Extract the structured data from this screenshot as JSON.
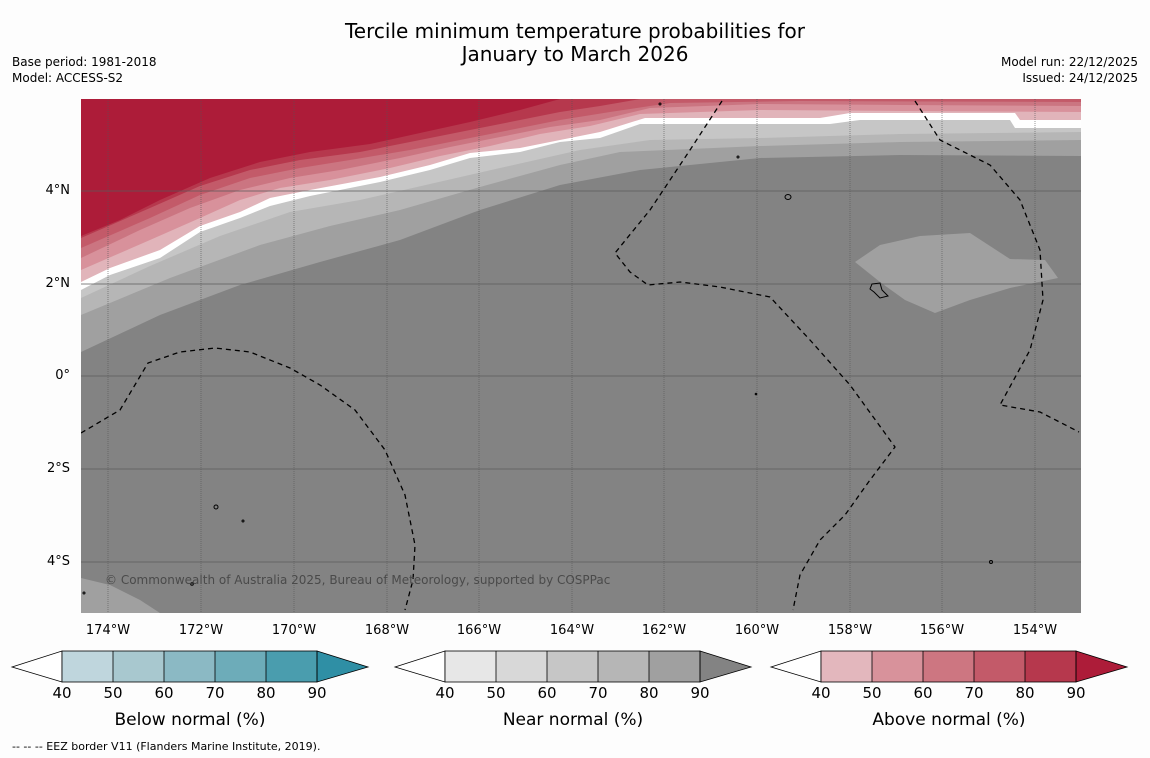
{
  "title": {
    "line1": "Tercile minimum temperature probabilities for",
    "line2": "January to March 2026"
  },
  "meta_left": {
    "base_period": "Base period: 1981-2018",
    "model": "Model: ACCESS-S2"
  },
  "meta_right": {
    "model_run": "Model run: 22/12/2025",
    "issued": "Issued: 24/12/2025"
  },
  "map": {
    "latitude_labels": [
      "4°N",
      "2°N",
      "0°",
      "2°S",
      "4°S"
    ],
    "longitude_labels": [
      "174°W",
      "172°W",
      "170°W",
      "168°W",
      "166°W",
      "164°W",
      "162°W",
      "160°W",
      "158°W",
      "156°W",
      "154°W"
    ],
    "copyright": "© Commonwealth of Australia 2025, Bureau of Meteorology, supported by COSPPac",
    "category_field": "Near normal 90+ over most of domain; Above normal 40-90+ toward north",
    "colors": {
      "near_90": "#838383",
      "near_80": "#a0a0a0",
      "near_70": "#b6b6b6",
      "near_60": "#c6c6c6",
      "above_40": "#e1b4ba",
      "above_50": "#d8919b",
      "above_60": "#cb7581",
      "above_70": "#c35a69",
      "above_80": "#b6384d",
      "above_90": "#ad1c39",
      "land": "#7a7a7a"
    }
  },
  "colorbars": [
    {
      "label": "Below normal (%)",
      "ticks": [
        "40",
        "50",
        "60",
        "70",
        "80",
        "90"
      ],
      "colors": [
        "#bfd6dd",
        "#a8c8cf",
        "#8bb9c4",
        "#6dacb9",
        "#4a9dae",
        "#2f8fa5"
      ]
    },
    {
      "label": "Near normal (%)",
      "ticks": [
        "40",
        "50",
        "60",
        "70",
        "80",
        "90"
      ],
      "colors": [
        "#e7e7e7",
        "#d8d8d8",
        "#c6c6c6",
        "#b6b6b6",
        "#a0a0a0",
        "#838383"
      ]
    },
    {
      "label": "Above normal (%)",
      "ticks": [
        "40",
        "50",
        "60",
        "70",
        "80",
        "90"
      ],
      "colors": [
        "#e3b7bd",
        "#d8929b",
        "#cd7681",
        "#c35a69",
        "#b6384d",
        "#ad1c39"
      ]
    }
  ],
  "footnote": "--  --  -- EEZ border V11 (Flanders Marine Institute, 2019)."
}
